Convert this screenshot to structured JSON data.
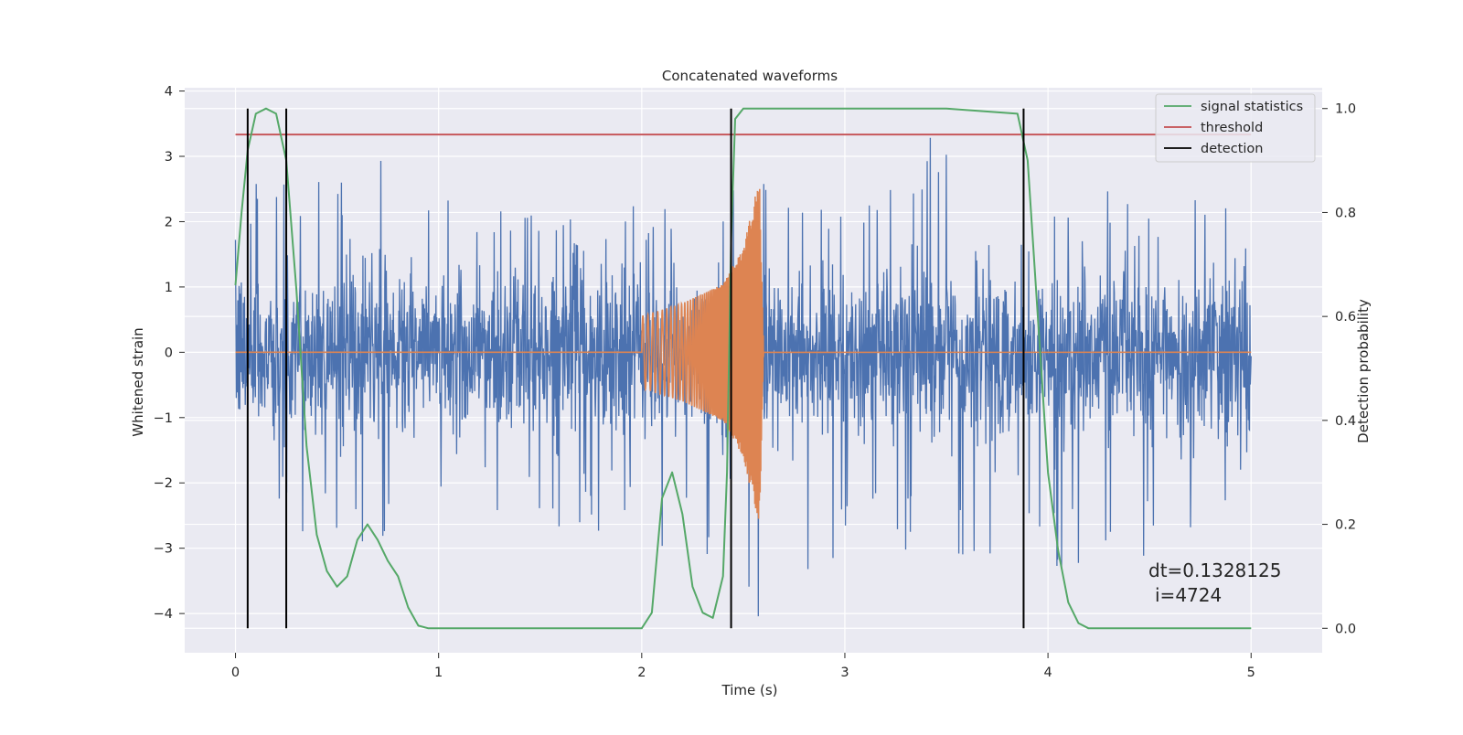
{
  "chart_data": {
    "type": "line",
    "title": "Concatenated waveforms",
    "xlabel": "Time (s)",
    "ylabel": "Whitened strain",
    "y2label": "Detection probability",
    "xlim": [
      -0.25,
      5.35
    ],
    "ylim": [
      -4.6,
      4.05
    ],
    "y2lim": [
      -0.047,
      1.04
    ],
    "x_ticks": [
      0,
      1,
      2,
      3,
      4,
      5
    ],
    "x_tick_labels": [
      "0",
      "1",
      "2",
      "3",
      "4",
      "5"
    ],
    "y_ticks": [
      4,
      3,
      2,
      1,
      0,
      -1,
      -2,
      -3,
      -4
    ],
    "y_tick_labels": [
      "4",
      "3",
      "2",
      "1",
      "0",
      "−1",
      "−2",
      "−3",
      "−4"
    ],
    "y2_ticks": [
      1.0,
      0.8,
      0.6,
      0.4,
      0.2,
      0.0
    ],
    "y2_tick_labels": [
      "1.0",
      "0.8",
      "0.6",
      "0.4",
      "0.2",
      "0.0"
    ],
    "grid": true,
    "legend_position": "top-right",
    "series": [
      {
        "axis": "left",
        "color": "#4c72b0",
        "kind": "noise",
        "x_range": [
          0,
          5
        ],
        "typical_range": [
          -1.2,
          1.2
        ],
        "extremes": [
          -4.4,
          3.65
        ],
        "envelope_x": [
          0,
          0.5,
          0.8,
          1.0,
          1.5,
          2.0,
          2.4,
          2.5,
          3.0,
          3.5,
          4.0,
          4.5,
          5.0
        ],
        "envelope_upper": [
          2.7,
          2.6,
          3.65,
          2.4,
          2.2,
          2.4,
          2.8,
          3.4,
          2.5,
          3.6,
          2.6,
          2.9,
          2.6
        ],
        "envelope_lower": [
          -2.2,
          -3.2,
          -2.9,
          -2.6,
          -2.7,
          -2.9,
          -3.3,
          -4.4,
          -3.0,
          -3.1,
          -3.4,
          -3.1,
          -2.4
        ]
      },
      {
        "axis": "left",
        "color": "#dd8452",
        "kind": "chirp",
        "x": [
          0,
          2.0,
          2.2,
          2.4,
          2.5,
          2.55,
          2.58,
          2.6,
          5.0
        ],
        "amplitude": [
          0,
          0.55,
          0.75,
          1.05,
          1.6,
          2.3,
          2.6,
          0.0,
          0
        ]
      },
      {
        "name": "signal statistics",
        "axis": "right",
        "color": "#55a868",
        "x": [
          0,
          0.03,
          0.06,
          0.1,
          0.15,
          0.2,
          0.25,
          0.3,
          0.35,
          0.4,
          0.45,
          0.5,
          0.55,
          0.6,
          0.65,
          0.7,
          0.75,
          0.8,
          0.85,
          0.9,
          0.95,
          1.0,
          1.5,
          2.0,
          2.05,
          2.1,
          2.15,
          2.2,
          2.25,
          2.3,
          2.35,
          2.4,
          2.42,
          2.44,
          2.46,
          2.5,
          3.0,
          3.5,
          3.85,
          3.9,
          3.95,
          4.0,
          4.05,
          4.1,
          4.15,
          4.2,
          4.3,
          4.5,
          5.0
        ],
        "y": [
          0.66,
          0.8,
          0.92,
          0.99,
          1.0,
          0.99,
          0.9,
          0.65,
          0.35,
          0.18,
          0.11,
          0.08,
          0.1,
          0.17,
          0.2,
          0.17,
          0.13,
          0.1,
          0.04,
          0.005,
          0.0,
          0.0,
          0.0,
          0.0,
          0.03,
          0.25,
          0.3,
          0.22,
          0.08,
          0.03,
          0.02,
          0.1,
          0.3,
          0.75,
          0.98,
          1.0,
          1.0,
          1.0,
          0.99,
          0.9,
          0.6,
          0.3,
          0.15,
          0.05,
          0.01,
          0.0,
          0.0,
          0.0,
          0.0
        ]
      },
      {
        "name": "threshold",
        "axis": "right",
        "color": "#c44e52",
        "x": [
          0,
          5
        ],
        "y": [
          0.95,
          0.95
        ]
      },
      {
        "name": "detection",
        "axis": "right",
        "color": "#000000",
        "vlines": [
          0.06,
          0.25,
          2.44,
          3.88
        ],
        "ymin": 0.0,
        "ymax": 1.0
      }
    ],
    "annotations": [
      "dt=0.1328125",
      "i=4724"
    ]
  }
}
